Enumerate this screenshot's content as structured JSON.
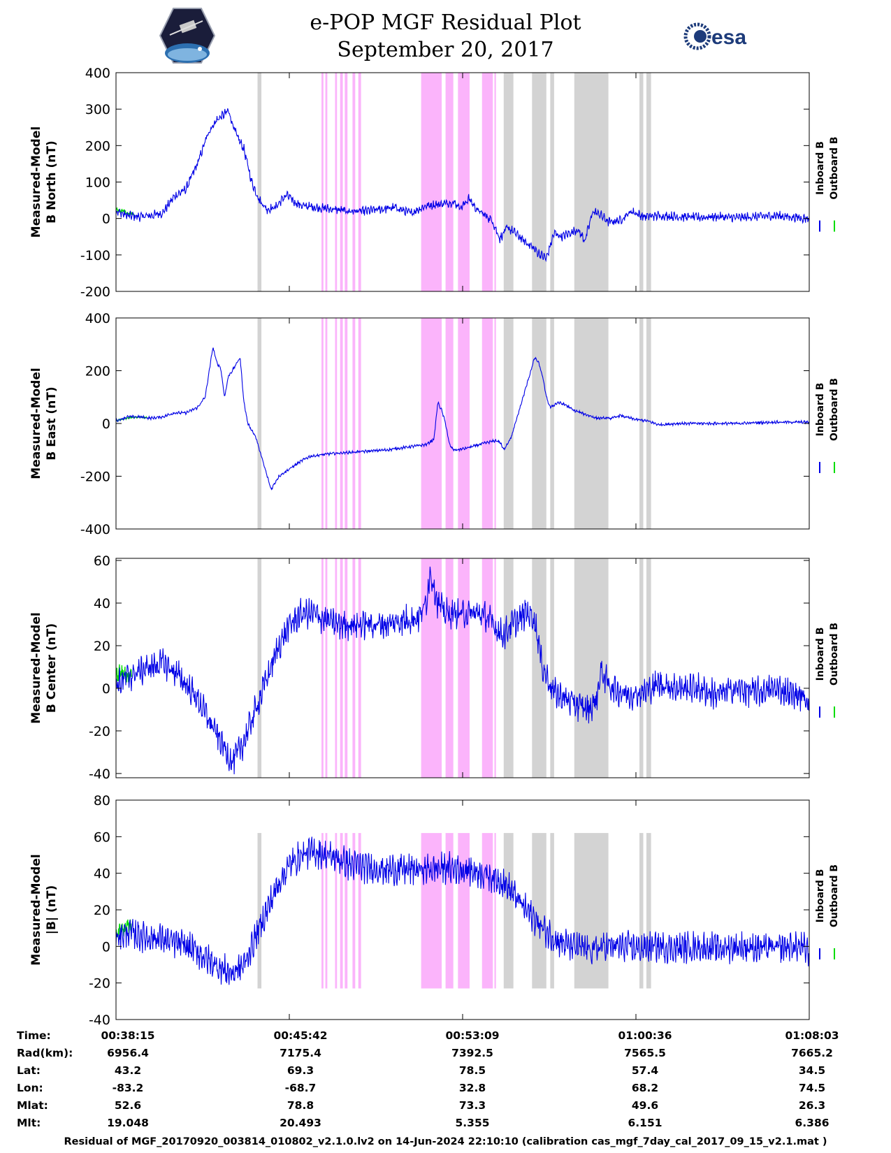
{
  "header": {
    "title_line1": "e-POP MGF Residual Plot",
    "title_line2": "September 20, 2017",
    "logo_left": "cassiope-logo",
    "logo_right_text": "esa"
  },
  "colors": {
    "inboard": "#0000e6",
    "outboard": "#00dd00",
    "gray_band": "#d3d3d3",
    "pink_band": "#fbb4fb"
  },
  "time_ticks": [
    "00:38:15",
    "00:45:42",
    "00:53:09",
    "01:00:36",
    "01:08:03"
  ],
  "ephemeris": [
    {
      "label": "Time:",
      "values": [
        "00:38:15",
        "00:45:42",
        "00:53:09",
        "01:00:36",
        "01:08:03"
      ]
    },
    {
      "label": "Rad(km):",
      "values": [
        "6956.4",
        "7175.4",
        "7392.5",
        "7565.5",
        "7665.2"
      ]
    },
    {
      "label": "Lat:",
      "values": [
        "43.2",
        "69.3",
        "78.5",
        "57.4",
        "34.5"
      ]
    },
    {
      "label": "Lon:",
      "values": [
        "-83.2",
        "-68.7",
        "32.8",
        "68.2",
        "74.5"
      ]
    },
    {
      "label": "Mlat:",
      "values": [
        "52.6",
        "78.8",
        "73.3",
        "49.6",
        "26.3"
      ]
    },
    {
      "label": "Mlt:",
      "values": [
        "19.048",
        "20.493",
        "5.355",
        "6.151",
        "6.386"
      ]
    }
  ],
  "footer": "Residual of MGF_20170920_003814_010802_v2.1.0.lv2 on 14-Jun-2024 22:10:10 (calibration cas_mgf_7day_cal_2017_09_15_v2.1.mat )",
  "chart_data": [
    {
      "type": "line",
      "title": "",
      "ylabel": [
        "Measured-Model",
        "B North (nT)"
      ],
      "xlim": [
        0,
        1788
      ],
      "ylim": [
        -200,
        400
      ],
      "yticks": [
        -200,
        -100,
        0,
        100,
        200,
        300,
        400
      ],
      "xticks_s": [
        0,
        447,
        894,
        1341,
        1788
      ],
      "legend": [
        "Inboard B",
        "Outboard B"
      ],
      "legend_position": "right",
      "series": [
        {
          "name": "Inboard B",
          "x": [
            0,
            30,
            60,
            90,
            120,
            150,
            180,
            210,
            240,
            260,
            290,
            310,
            330,
            350,
            370,
            390,
            410,
            440,
            460,
            480,
            520,
            560,
            600,
            640,
            680,
            720,
            760,
            800,
            840,
            870,
            890,
            910,
            930,
            950,
            970,
            990,
            1010,
            1030,
            1050,
            1070,
            1090,
            1110,
            1130,
            1150,
            1170,
            1190,
            1210,
            1230,
            1250,
            1270,
            1300,
            1330,
            1360,
            1400,
            1450,
            1500,
            1550,
            1600,
            1650,
            1700,
            1750,
            1788
          ],
          "values": [
            20,
            8,
            5,
            8,
            15,
            60,
            80,
            150,
            240,
            270,
            295,
            230,
            190,
            100,
            50,
            25,
            30,
            65,
            45,
            35,
            30,
            25,
            20,
            20,
            25,
            30,
            15,
            35,
            40,
            45,
            30,
            55,
            25,
            10,
            -5,
            -55,
            -25,
            -40,
            -60,
            -75,
            -95,
            -110,
            -40,
            -50,
            -40,
            -30,
            -60,
            20,
            10,
            -10,
            -5,
            20,
            5,
            8,
            5,
            3,
            5,
            2,
            5,
            8,
            3,
            0
          ],
          "noise": 9
        },
        {
          "name": "Outboard B",
          "x": [
            0,
            10,
            20,
            30,
            40,
            50
          ],
          "values": [
            25,
            20,
            22,
            12,
            15,
            5
          ],
          "noise": 3
        }
      ],
      "bands": {
        "gray_s": [
          [
            365,
            375
          ],
          [
            1000,
            1025
          ],
          [
            1073,
            1110
          ],
          [
            1120,
            1130
          ],
          [
            1182,
            1270
          ],
          [
            1350,
            1360
          ],
          [
            1368,
            1380
          ]
        ],
        "pink_s": [
          [
            530,
            535
          ],
          [
            540,
            545
          ],
          [
            565,
            570
          ],
          [
            578,
            585
          ],
          [
            590,
            597
          ],
          [
            610,
            617
          ],
          [
            625,
            632
          ],
          [
            787,
            840
          ],
          [
            850,
            870
          ],
          [
            882,
            912
          ],
          [
            944,
            972
          ],
          [
            976,
            980
          ]
        ]
      }
    },
    {
      "type": "line",
      "title": "",
      "ylabel": [
        "Measured-Model",
        "B East (nT)"
      ],
      "xlim": [
        0,
        1788
      ],
      "ylim": [
        -400,
        400
      ],
      "yticks": [
        -400,
        -200,
        0,
        200,
        400
      ],
      "xticks_s": [
        0,
        447,
        894,
        1341,
        1788
      ],
      "legend": [
        "Inboard B",
        "Outboard B"
      ],
      "legend_position": "right",
      "series": [
        {
          "name": "Inboard B",
          "x": [
            0,
            30,
            60,
            90,
            120,
            150,
            180,
            210,
            230,
            250,
            260,
            270,
            280,
            290,
            300,
            320,
            330,
            340,
            360,
            380,
            400,
            420,
            440,
            460,
            480,
            500,
            550,
            600,
            650,
            700,
            750,
            800,
            820,
            830,
            840,
            850,
            860,
            870,
            880,
            900,
            950,
            980,
            990,
            1000,
            1020,
            1040,
            1060,
            1080,
            1090,
            1100,
            1110,
            1120,
            1140,
            1160,
            1180,
            1200,
            1240,
            1280,
            1300,
            1340,
            1370,
            1400,
            1450,
            1500,
            1600,
            1700,
            1788
          ],
          "values": [
            10,
            25,
            25,
            20,
            25,
            40,
            40,
            60,
            100,
            290,
            230,
            210,
            100,
            180,
            200,
            250,
            80,
            0,
            -50,
            -150,
            -250,
            -200,
            -180,
            -160,
            -140,
            -125,
            -115,
            -110,
            -105,
            -100,
            -90,
            -80,
            -60,
            80,
            50,
            0,
            -80,
            -100,
            -100,
            -95,
            -75,
            -65,
            -70,
            -100,
            -50,
            50,
            150,
            250,
            230,
            180,
            100,
            60,
            80,
            70,
            50,
            40,
            20,
            20,
            30,
            15,
            10,
            -5,
            0,
            0,
            0,
            5,
            5
          ],
          "noise": 4
        },
        {
          "name": "Outboard B",
          "x": [
            0,
            20,
            40,
            60,
            80
          ],
          "values": [
            10,
            18,
            22,
            25,
            22
          ],
          "noise": 2
        }
      ],
      "bands": {
        "gray_s": [
          [
            365,
            375
          ],
          [
            1000,
            1025
          ],
          [
            1073,
            1110
          ],
          [
            1120,
            1130
          ],
          [
            1182,
            1270
          ],
          [
            1350,
            1360
          ],
          [
            1368,
            1380
          ]
        ],
        "pink_s": [
          [
            530,
            535
          ],
          [
            540,
            545
          ],
          [
            565,
            570
          ],
          [
            578,
            585
          ],
          [
            590,
            597
          ],
          [
            610,
            617
          ],
          [
            625,
            632
          ],
          [
            787,
            840
          ],
          [
            850,
            870
          ],
          [
            882,
            912
          ],
          [
            944,
            972
          ],
          [
            976,
            980
          ]
        ]
      }
    },
    {
      "type": "line",
      "title": "",
      "ylabel": [
        "Measured-Model",
        "B Center (nT)"
      ],
      "xlim": [
        0,
        1788
      ],
      "ylim": [
        -42,
        61
      ],
      "yticks": [
        -40,
        -20,
        0,
        20,
        40,
        60
      ],
      "xticks_s": [
        0,
        447,
        894,
        1341,
        1788
      ],
      "legend": [
        "Inboard B",
        "Outboard B"
      ],
      "legend_position": "right",
      "series": [
        {
          "name": "Inboard B",
          "x": [
            0,
            30,
            60,
            90,
            120,
            150,
            180,
            210,
            240,
            270,
            300,
            330,
            360,
            390,
            420,
            450,
            480,
            510,
            540,
            570,
            600,
            630,
            660,
            700,
            740,
            780,
            800,
            810,
            820,
            830,
            850,
            880,
            910,
            940,
            960,
            980,
            1000,
            1020,
            1040,
            1060,
            1080,
            1100,
            1130,
            1160,
            1190,
            1220,
            1240,
            1250,
            1260,
            1280,
            1320,
            1360,
            1400,
            1450,
            1500,
            1550,
            1600,
            1650,
            1700,
            1750,
            1788
          ],
          "values": [
            2,
            5,
            8,
            10,
            12,
            8,
            2,
            -5,
            -15,
            -25,
            -35,
            -25,
            -10,
            5,
            20,
            30,
            35,
            35,
            32,
            30,
            30,
            30,
            30,
            30,
            32,
            33,
            40,
            55,
            48,
            40,
            35,
            35,
            35,
            35,
            33,
            28,
            25,
            30,
            32,
            36,
            32,
            10,
            -2,
            -5,
            -8,
            -10,
            -5,
            8,
            5,
            0,
            -3,
            -2,
            2,
            0,
            0,
            -3,
            0,
            -2,
            0,
            -3,
            -5
          ],
          "noise": 5
        },
        {
          "name": "Outboard B",
          "x": [
            0,
            10,
            20,
            30,
            40
          ],
          "values": [
            5,
            8,
            7,
            6,
            8
          ],
          "noise": 3
        }
      ],
      "bands": {
        "gray_s": [
          [
            365,
            375
          ],
          [
            1000,
            1025
          ],
          [
            1073,
            1110
          ],
          [
            1120,
            1130
          ],
          [
            1182,
            1270
          ],
          [
            1350,
            1360
          ],
          [
            1368,
            1380
          ]
        ],
        "pink_s": [
          [
            530,
            535
          ],
          [
            540,
            545
          ],
          [
            565,
            570
          ],
          [
            578,
            585
          ],
          [
            590,
            597
          ],
          [
            610,
            617
          ],
          [
            625,
            632
          ],
          [
            787,
            840
          ],
          [
            850,
            870
          ],
          [
            882,
            912
          ],
          [
            944,
            972
          ],
          [
            976,
            980
          ]
        ]
      }
    },
    {
      "type": "line",
      "title": "",
      "ylabel": [
        "Measured-Model",
        "|B| (nT)"
      ],
      "xlim": [
        0,
        1788
      ],
      "ylim": [
        -40,
        80
      ],
      "yticks": [
        -40,
        -20,
        0,
        20,
        40,
        60,
        80
      ],
      "xticks_s": [
        0,
        447,
        894,
        1341,
        1788
      ],
      "legend": [
        "Inboard B",
        "Outboard B"
      ],
      "legend_position": "right",
      "series": [
        {
          "name": "Inboard B",
          "x": [
            0,
            30,
            60,
            90,
            120,
            150,
            180,
            210,
            240,
            270,
            300,
            330,
            360,
            390,
            420,
            450,
            480,
            510,
            540,
            570,
            600,
            650,
            700,
            750,
            800,
            850,
            900,
            950,
            1000,
            1020,
            1050,
            1080,
            1110,
            1140,
            1170,
            1200,
            1230,
            1260,
            1300,
            1350,
            1400,
            1450,
            1500,
            1550,
            1600,
            1650,
            1700,
            1750,
            1788
          ],
          "values": [
            5,
            8,
            6,
            5,
            4,
            2,
            0,
            -3,
            -8,
            -12,
            -15,
            -10,
            5,
            20,
            35,
            45,
            50,
            52,
            50,
            48,
            45,
            43,
            42,
            42,
            42,
            43,
            42,
            40,
            35,
            30,
            22,
            15,
            8,
            3,
            0,
            -1,
            -2,
            0,
            0,
            -1,
            0,
            -1,
            0,
            -1,
            0,
            -1,
            -1,
            0,
            -2
          ],
          "noise": 6
        },
        {
          "name": "Outboard B",
          "x": [
            0,
            10,
            20,
            30,
            40
          ],
          "values": [
            5,
            10,
            8,
            12,
            9
          ],
          "noise": 3
        }
      ],
      "bands": {
        "gray_s": [
          [
            365,
            375
          ],
          [
            1000,
            1025
          ],
          [
            1073,
            1110
          ],
          [
            1120,
            1130
          ],
          [
            1182,
            1270
          ],
          [
            1350,
            1360
          ],
          [
            1368,
            1380
          ]
        ],
        "pink_s": [
          [
            530,
            535
          ],
          [
            540,
            545
          ],
          [
            565,
            570
          ],
          [
            578,
            585
          ],
          [
            590,
            597
          ],
          [
            610,
            617
          ],
          [
            625,
            632
          ],
          [
            787,
            840
          ],
          [
            850,
            870
          ],
          [
            882,
            912
          ],
          [
            944,
            972
          ],
          [
            976,
            980
          ]
        ]
      },
      "band_ylim": [
        -23,
        62
      ]
    }
  ]
}
